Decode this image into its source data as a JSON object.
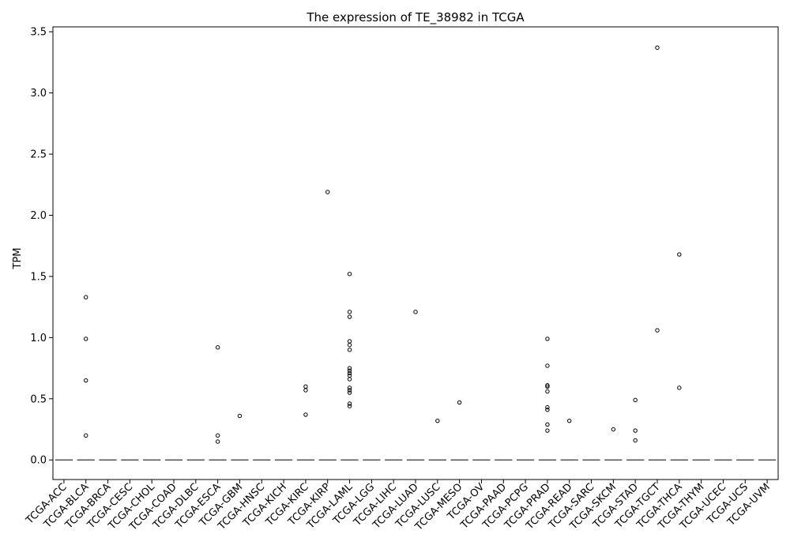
{
  "chart_data": {
    "type": "boxplot",
    "title": "The expression of TE_38982 in TCGA",
    "xlabel": "",
    "ylabel": "TPM",
    "ylim": [
      -0.16,
      3.54
    ],
    "yticks": [
      0.0,
      0.5,
      1.0,
      1.5,
      2.0,
      2.5,
      3.0,
      3.5
    ],
    "ytick_labels": [
      "0.0",
      "0.5",
      "1.0",
      "1.5",
      "2.0",
      "2.5",
      "3.0",
      "3.5"
    ],
    "grid": false,
    "legend": "none",
    "colors": {
      "box_line": "#555555",
      "outlier": "#000000",
      "axis": "#000000"
    },
    "categories": [
      "TCGA-ACC",
      "TCGA-BLCA",
      "TCGA-BRCA",
      "TCGA-CESC",
      "TCGA-CHOL",
      "TCGA-COAD",
      "TCGA-DLBC",
      "TCGA-ESCA",
      "TCGA-GBM",
      "TCGA-HNSC",
      "TCGA-KICH",
      "TCGA-KIRC",
      "TCGA-KIRP",
      "TCGA-LAML",
      "TCGA-LGG",
      "TCGA-LIHC",
      "TCGA-LUAD",
      "TCGA-LUSC",
      "TCGA-MESO",
      "TCGA-OV",
      "TCGA-PAAD",
      "TCGA-PCPG",
      "TCGA-PRAD",
      "TCGA-READ",
      "TCGA-SARC",
      "TCGA-SKCM",
      "TCGA-STAD",
      "TCGA-TGCT",
      "TCGA-THCA",
      "TCGA-THYM",
      "TCGA-UCEC",
      "TCGA-UCS",
      "TCGA-UVM"
    ],
    "median": 0.0,
    "outliers": [
      [],
      [
        1.33,
        0.99,
        0.65,
        0.2
      ],
      [],
      [],
      [],
      [],
      [],
      [
        0.92,
        0.2,
        0.15
      ],
      [
        0.36
      ],
      [],
      [],
      [
        0.6,
        0.57,
        0.37
      ],
      [
        2.19
      ],
      [
        1.52,
        1.21,
        1.17,
        0.97,
        0.94,
        0.9,
        0.75,
        0.73,
        0.71,
        0.69,
        0.66,
        0.59,
        0.57,
        0.55,
        0.46,
        0.44
      ],
      [],
      [],
      [
        1.21
      ],
      [
        0.32
      ],
      [
        0.47
      ],
      [],
      [],
      [],
      [
        0.99,
        0.77,
        0.61,
        0.6,
        0.56,
        0.43,
        0.41,
        0.29,
        0.24
      ],
      [
        0.32
      ],
      [],
      [
        0.25
      ],
      [
        0.49,
        0.24,
        0.16
      ],
      [
        3.37,
        1.06
      ],
      [
        1.68,
        0.59
      ],
      [],
      [],
      [],
      []
    ]
  }
}
